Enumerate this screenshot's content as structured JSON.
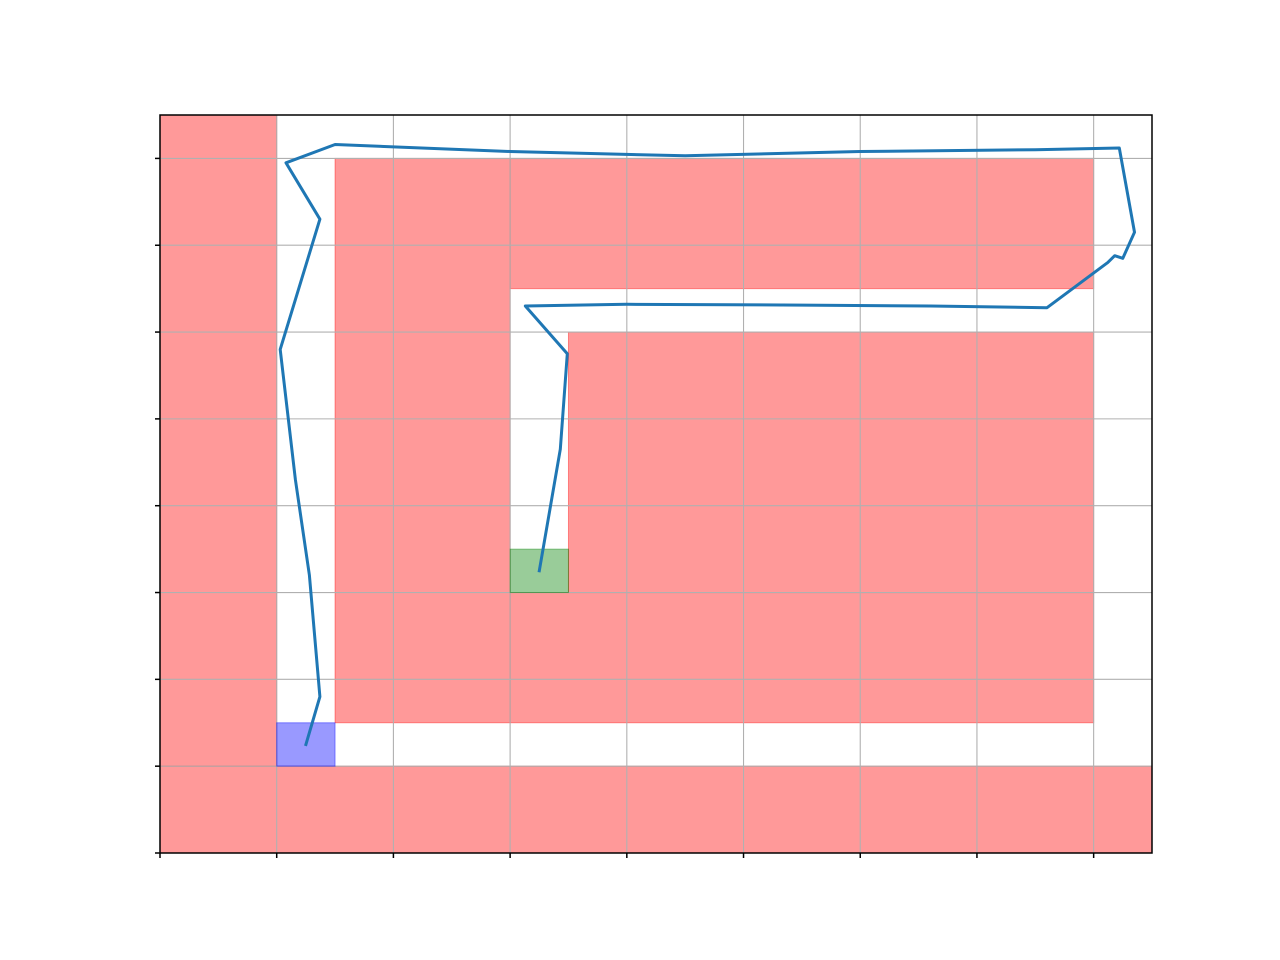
{
  "chart_data": {
    "type": "line",
    "title": "",
    "xlabel": "",
    "ylabel": "",
    "xlim": [
      0,
      8.5
    ],
    "ylim": [
      0,
      8.5
    ],
    "xticks": [
      0,
      1,
      2,
      3,
      4,
      5,
      6,
      7,
      8
    ],
    "yticks": [
      0,
      1,
      2,
      3,
      4,
      5,
      6,
      7,
      8
    ],
    "tick_labels_visible": false,
    "grid": true,
    "colors": {
      "obstacle": "#ff0000",
      "start": "#0000ff",
      "goal": "#008000",
      "path": "#1f77b4",
      "grid": "#b0b0b0"
    },
    "obstacles": [
      {
        "x": 0,
        "y": 1,
        "w": 1,
        "h": 7.5
      },
      {
        "x": 0,
        "y": 0,
        "w": 8.5,
        "h": 1
      },
      {
        "x": 1.5,
        "y": 1.5,
        "w": 1.5,
        "h": 6.5
      },
      {
        "x": 3,
        "y": 6.5,
        "w": 5,
        "h": 1.5
      },
      {
        "x": 3.5,
        "y": 3,
        "w": 4.5,
        "h": 3
      },
      {
        "x": 3,
        "y": 1.5,
        "w": 5,
        "h": 1.5
      }
    ],
    "start_region": {
      "x": 1,
      "y": 1,
      "w": 0.5,
      "h": 0.5
    },
    "goal_region": {
      "x": 3,
      "y": 3,
      "w": 0.5,
      "h": 0.5
    },
    "path": {
      "x": [
        1.25,
        1.37,
        1.28,
        1.16,
        1.03,
        1.37,
        1.08,
        1.5,
        3.0,
        4.5,
        6.0,
        7.5,
        8.22,
        8.35,
        8.25,
        8.18,
        8.12,
        8.07,
        7.6,
        6.6,
        5.5,
        4.0,
        3.13,
        3.49,
        3.43,
        3.25
      ],
      "y": [
        1.25,
        1.8,
        3.2,
        4.3,
        5.8,
        7.3,
        7.95,
        8.16,
        8.08,
        8.03,
        8.08,
        8.1,
        8.12,
        7.15,
        6.85,
        6.88,
        6.8,
        6.75,
        6.28,
        6.3,
        6.31,
        6.32,
        6.3,
        5.75,
        4.65,
        3.25
      ]
    }
  }
}
